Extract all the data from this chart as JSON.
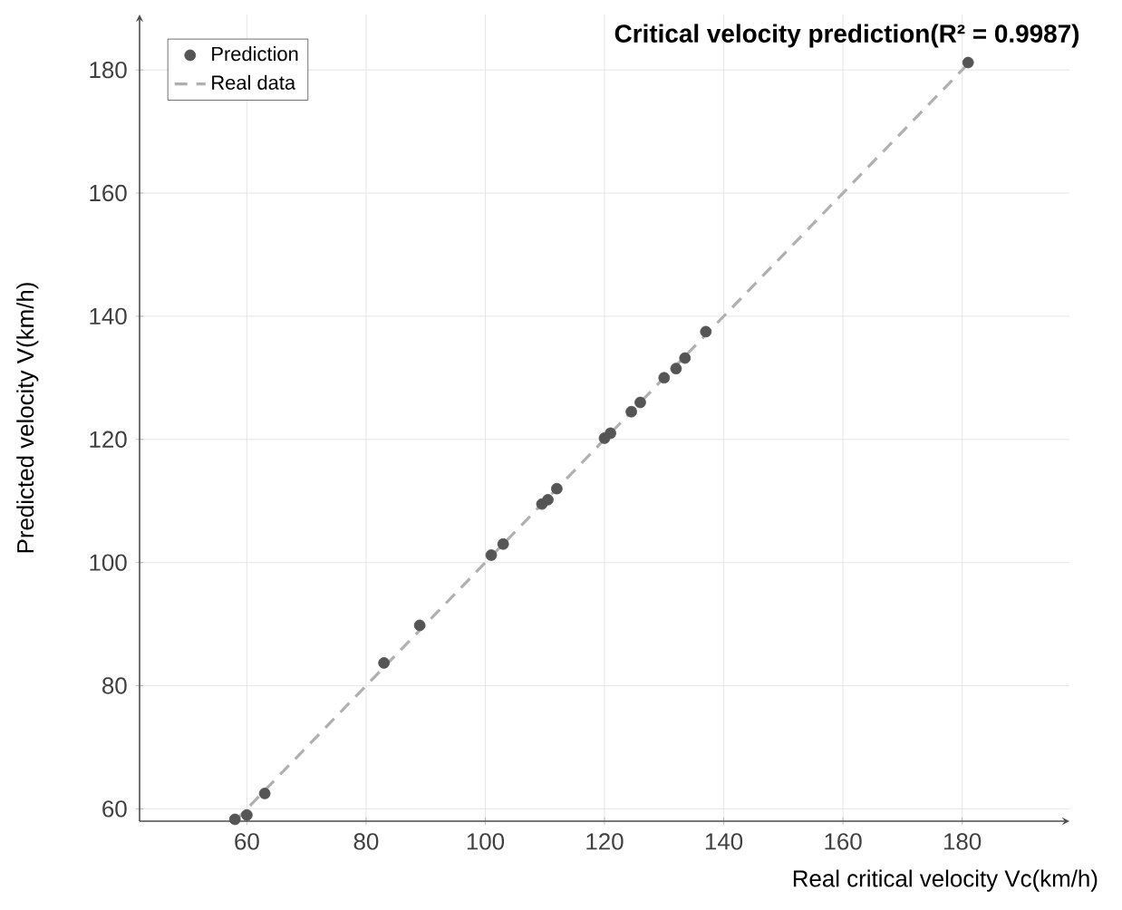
{
  "chart_data": {
    "type": "scatter",
    "title": "Critical velocity prediction(R² = 0.9987)",
    "xlabel": "Real critical velocity Vc(km/h)",
    "ylabel": "Predicted velocity V(km/h)",
    "x": [
      58,
      60,
      63,
      83,
      89,
      101,
      103,
      109.5,
      110.5,
      112,
      120,
      121,
      124.5,
      126,
      130,
      132,
      133.5,
      137,
      181
    ],
    "series": [
      {
        "name": "Prediction",
        "color": "#555555",
        "marker": "circle",
        "values": [
          58.3,
          59,
          62.5,
          83.7,
          89.8,
          101.2,
          103,
          109.5,
          110.2,
          112,
          120.2,
          121,
          124.5,
          126,
          130,
          131.5,
          133.2,
          137.5,
          181.2
        ]
      },
      {
        "name": "Real data",
        "type": "line",
        "color": "#b0b0b0",
        "line_style": "dashed",
        "marker": "none",
        "x": [
          58,
          181
        ],
        "values": [
          58,
          181
        ]
      }
    ],
    "xlim": [
      42,
      198
    ],
    "ylim": [
      58,
      189
    ],
    "xticks": [
      60,
      80,
      100,
      120,
      140,
      160,
      180
    ],
    "yticks": [
      60,
      80,
      100,
      120,
      140,
      160,
      180
    ],
    "grid": true,
    "legend": "top left"
  }
}
